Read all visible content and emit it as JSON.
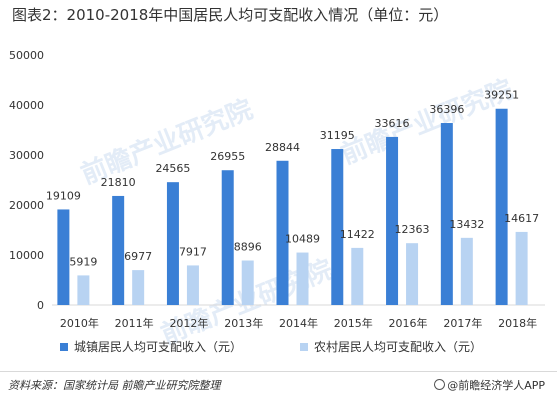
{
  "header": {
    "title": "图表2：2010-2018年中国居民人均可支配收入情况（单位：元）"
  },
  "footer": {
    "source": "资料来源：国家统计局 前瞻产业研究院整理",
    "brand": "@前瞻经济学人APP"
  },
  "watermark": {
    "text": "前瞻产业研究院"
  },
  "colors": {
    "urban": "#3a7fd5",
    "rural": "#b8d3f2",
    "grid": "#d9d9d9",
    "text": "#333333"
  },
  "chart_data": {
    "type": "bar",
    "title": "图表2：2010-2018年中国居民人均可支配收入情况（单位：元）",
    "categories": [
      "2010年",
      "2011年",
      "2012年",
      "2013年",
      "2014年",
      "2015年",
      "2016年",
      "2017年",
      "2018年"
    ],
    "series": [
      {
        "name": "城镇居民人均可支配收入（元）",
        "values": [
          19109,
          21810,
          24565,
          26955,
          28844,
          31195,
          33616,
          36396,
          39251
        ]
      },
      {
        "name": "农村居民人均可支配收入（元）",
        "values": [
          5919,
          6977,
          7917,
          8896,
          10489,
          11422,
          12363,
          13432,
          14617
        ]
      }
    ],
    "ylim": [
      0,
      50000
    ],
    "yticks": [
      0,
      10000,
      20000,
      30000,
      40000,
      50000
    ],
    "xlabel": "",
    "ylabel": "",
    "grid": false,
    "legend_position": "bottom",
    "data_labels": true
  }
}
